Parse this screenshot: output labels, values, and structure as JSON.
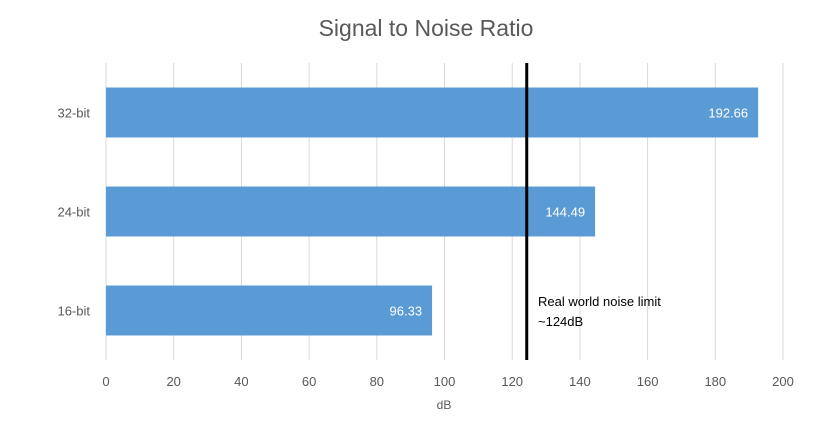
{
  "chart_data": {
    "type": "bar",
    "orientation": "horizontal",
    "title": "Signal to Noise Ratio",
    "xlabel": "dB",
    "ylabel": "",
    "categories": [
      "16-bit",
      "24-bit",
      "32-bit"
    ],
    "values": [
      96.33,
      144.49,
      192.66
    ],
    "data_labels": [
      "96.33",
      "144.49",
      "192.66"
    ],
    "xlim": [
      0,
      200
    ],
    "x_ticks": [
      0,
      20,
      40,
      60,
      80,
      100,
      120,
      140,
      160,
      180,
      200
    ],
    "grid": "vertical",
    "bar_color": "#5b9bd5",
    "reference_line": {
      "value": 124,
      "color": "#000000",
      "label_lines": [
        "Real world noise limit",
        "~124dB"
      ]
    }
  }
}
